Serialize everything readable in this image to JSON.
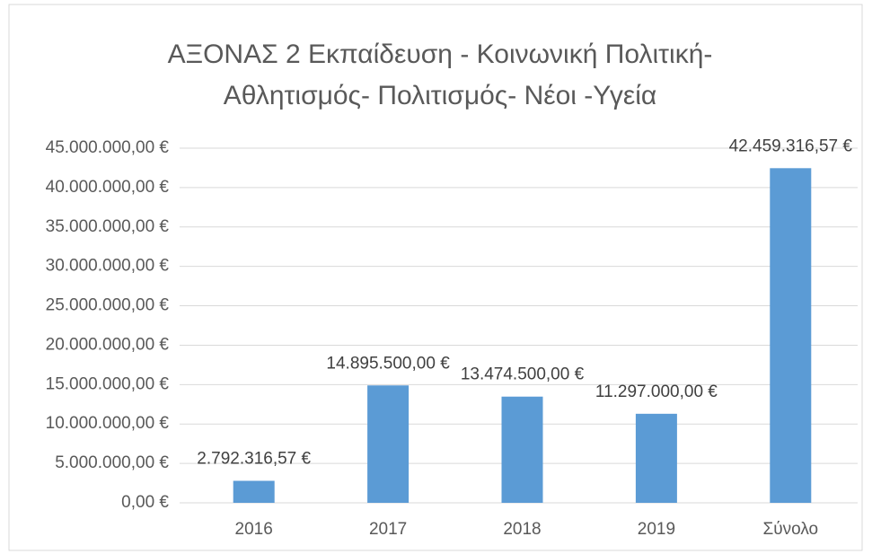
{
  "chart_data": {
    "type": "bar",
    "title": [
      "ΑΞΟΝΑΣ  2 Εκπαίδευση - Κοινωνική Πολιτική-",
      "Αθλητισμός- Πολιτισμός-  Νέοι -Υγεία"
    ],
    "categories": [
      "2016",
      "2017",
      "2018",
      "2019",
      "Σύνολο"
    ],
    "values": [
      2792316.57,
      14895500,
      13474500,
      11297000,
      42459316.57
    ],
    "value_labels": [
      "2.792.316,57 €",
      "14.895.500,00 €",
      "13.474.500,00 €",
      "11.297.000,00 €",
      "42.459.316,57 €"
    ],
    "color": "#5b9bd5",
    "ylim": [
      0,
      45000000
    ],
    "yticks": [
      {
        "value": 0,
        "label": "0,00 €"
      },
      {
        "value": 5000000,
        "label": "5.000.000,00 €"
      },
      {
        "value": 10000000,
        "label": "10.000.000,00 €"
      },
      {
        "value": 15000000,
        "label": "15.000.000,00 €"
      },
      {
        "value": 20000000,
        "label": "20.000.000,00 €"
      },
      {
        "value": 25000000,
        "label": "25.000.000,00 €"
      },
      {
        "value": 30000000,
        "label": "30.000.000,00 €"
      },
      {
        "value": 35000000,
        "label": "35.000.000,00 €"
      },
      {
        "value": 40000000,
        "label": "40.000.000,00 €"
      },
      {
        "value": 45000000,
        "label": "45.000.000,00 €"
      }
    ],
    "grid": true
  }
}
